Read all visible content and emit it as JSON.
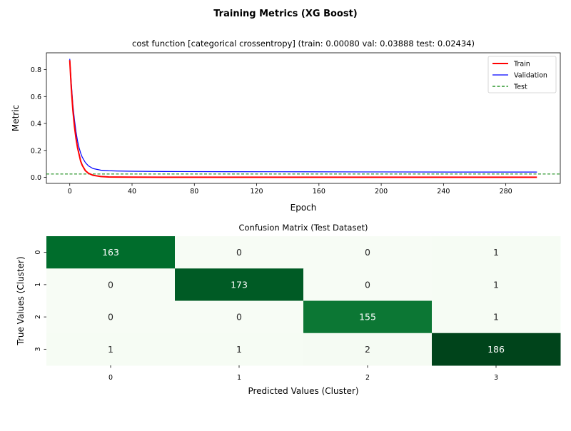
{
  "figure": {
    "suptitle": "Training Metrics (XG Boost)"
  },
  "chart_data": [
    {
      "type": "line",
      "title": "cost function [categorical crossentropy] (train: 0.00080  val: 0.03888  test: 0.02434)",
      "xlabel": "Epoch",
      "ylabel": "Metric",
      "xlim": [
        -15,
        315
      ],
      "ylim": [
        -0.045,
        0.925
      ],
      "xticks": [
        0,
        40,
        80,
        120,
        160,
        200,
        240,
        280
      ],
      "yticks": [
        0.0,
        0.2,
        0.4,
        0.6,
        0.8
      ],
      "ytick_labels": [
        "0.0",
        "0.2",
        "0.4",
        "0.6",
        "0.8"
      ],
      "grid": false,
      "legend": "top-right",
      "series": [
        {
          "name": "Train",
          "color": "#ff0000",
          "style": "solid",
          "x": [
            0,
            1,
            2,
            3,
            4,
            5,
            6,
            7,
            8,
            10,
            12,
            15,
            20,
            25,
            30,
            40,
            60,
            100,
            150,
            200,
            250,
            300
          ],
          "values": [
            0.87,
            0.66,
            0.5,
            0.38,
            0.29,
            0.22,
            0.17,
            0.12,
            0.09,
            0.05,
            0.03,
            0.015,
            0.006,
            0.003,
            0.002,
            0.0015,
            0.001,
            0.0009,
            0.0008,
            0.0008,
            0.0008,
            0.0008
          ]
        },
        {
          "name": "Validation",
          "color": "#0000ff",
          "style": "solid",
          "x": [
            0,
            1,
            2,
            3,
            4,
            5,
            6,
            7,
            8,
            10,
            12,
            15,
            20,
            25,
            30,
            40,
            60,
            100,
            150,
            200,
            250,
            300
          ],
          "values": [
            0.88,
            0.7,
            0.54,
            0.43,
            0.34,
            0.27,
            0.22,
            0.18,
            0.15,
            0.11,
            0.085,
            0.065,
            0.053,
            0.049,
            0.047,
            0.045,
            0.043,
            0.042,
            0.041,
            0.04,
            0.039,
            0.039
          ]
        },
        {
          "name": "Test",
          "color": "#008000",
          "style": "dashed",
          "horizontal": true,
          "value": 0.02434
        }
      ]
    },
    {
      "type": "heatmap",
      "title": "Confusion Matrix (Test Dataset)",
      "xlabel": "Predicted Values (Cluster)",
      "ylabel": "True Values (Cluster)",
      "x_categories": [
        "0",
        "1",
        "2",
        "3"
      ],
      "y_categories": [
        "0",
        "1",
        "2",
        "3"
      ],
      "colormap": "greens",
      "values": [
        [
          163,
          0,
          0,
          1
        ],
        [
          0,
          173,
          0,
          1
        ],
        [
          0,
          0,
          155,
          1
        ],
        [
          1,
          1,
          2,
          186
        ]
      ]
    }
  ]
}
